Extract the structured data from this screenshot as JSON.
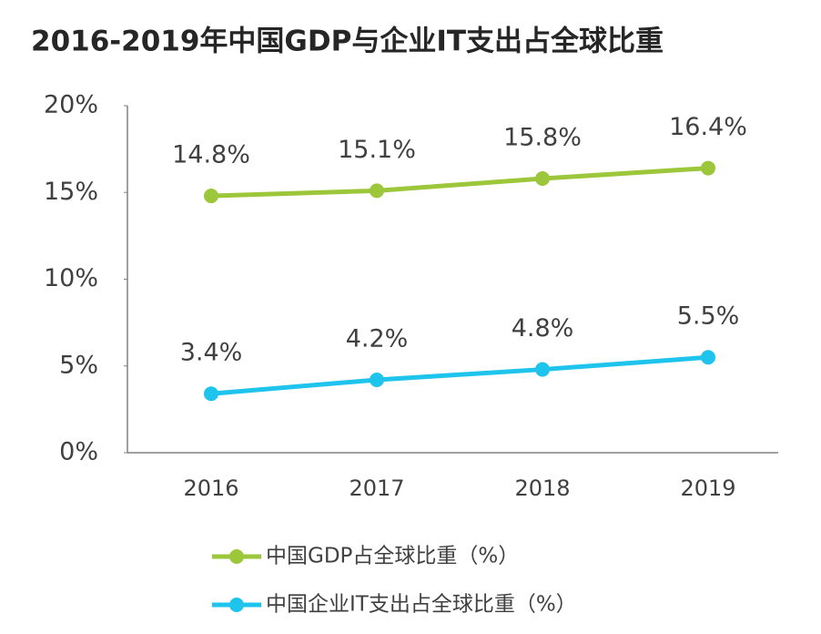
{
  "chart_data": {
    "type": "line",
    "title": "2016-2019年中国GDP与企业IT支出占全球比重",
    "categories": [
      "2016",
      "2017",
      "2018",
      "2019"
    ],
    "series": [
      {
        "name": "中国GDP占全球比重（%）",
        "color": "#9dc73a",
        "values": [
          14.8,
          15.1,
          15.8,
          16.4
        ],
        "value_labels": [
          "14.8%",
          "15.1%",
          "15.8%",
          "16.4%"
        ]
      },
      {
        "name": "中国企业IT支出占全球比重（%）",
        "color": "#1fc4ec",
        "values": [
          3.4,
          4.2,
          4.8,
          5.5
        ],
        "value_labels": [
          "3.4%",
          "4.2%",
          "4.8%",
          "5.5%"
        ]
      }
    ],
    "ylim": [
      0,
      20
    ],
    "yticks": [
      {
        "value": 0,
        "label": "0%"
      },
      {
        "value": 5,
        "label": "5%"
      },
      {
        "value": 10,
        "label": "10%"
      },
      {
        "value": 15,
        "label": "15%"
      },
      {
        "value": 20,
        "label": "20%"
      }
    ],
    "grid": false,
    "legend": "bottom"
  }
}
